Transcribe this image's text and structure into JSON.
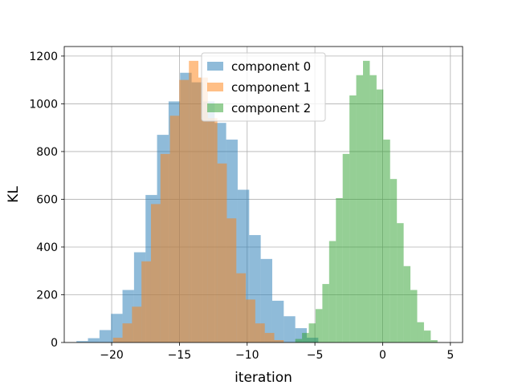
{
  "chart_data": {
    "type": "histogram",
    "title": "",
    "xlabel": "iteration",
    "ylabel": "KL",
    "xlim": [
      -23.5,
      5.9
    ],
    "ylim": [
      0,
      1240
    ],
    "xticks": [
      -20,
      -15,
      -10,
      -5,
      0,
      5
    ],
    "xtick_labels": [
      "−20",
      "−15",
      "−10",
      "−5",
      "0",
      "5"
    ],
    "yticks": [
      0,
      200,
      400,
      600,
      800,
      1000,
      1200
    ],
    "ytick_labels": [
      "0",
      "200",
      "400",
      "600",
      "800",
      "1000",
      "1200"
    ],
    "grid": true,
    "legend_position": "top-center",
    "series": [
      {
        "name": "component 0",
        "color": "#1f77b4",
        "alpha": 0.5,
        "bin_edges": [
          -22.6,
          -21.75,
          -20.9,
          -20.05,
          -19.2,
          -18.35,
          -17.5,
          -16.65,
          -15.8,
          -14.95,
          -14.1,
          -13.25,
          -12.4,
          -11.55,
          -10.7,
          -9.85,
          -9.0,
          -8.15,
          -7.3,
          -6.45,
          -5.6,
          -4.75
        ],
        "counts": [
          6,
          18,
          52,
          120,
          220,
          378,
          618,
          870,
          1010,
          1130,
          1090,
          1010,
          920,
          850,
          640,
          450,
          350,
          175,
          110,
          60,
          20
        ]
      },
      {
        "name": "component 1",
        "color": "#ff7f0e",
        "alpha": 0.5,
        "bin_edges": [
          -19.9,
          -19.2,
          -18.5,
          -17.8,
          -17.1,
          -16.4,
          -15.7,
          -15.0,
          -14.3,
          -13.6,
          -12.9,
          -12.2,
          -11.5,
          -10.8,
          -10.1,
          -9.4,
          -8.7,
          -8.0,
          -7.3
        ],
        "counts": [
          20,
          80,
          150,
          340,
          580,
          790,
          950,
          1100,
          1180,
          1110,
          940,
          750,
          520,
          290,
          180,
          80,
          40,
          10
        ]
      },
      {
        "name": "component 2",
        "color": "#2ca02c",
        "alpha": 0.5,
        "bin_edges": [
          -6.45,
          -5.95,
          -5.45,
          -4.95,
          -4.45,
          -3.95,
          -3.45,
          -2.95,
          -2.45,
          -1.95,
          -1.45,
          -0.95,
          -0.45,
          0.05,
          0.55,
          1.05,
          1.55,
          2.05,
          2.55,
          3.05,
          3.55,
          4.05
        ],
        "counts": [
          15,
          40,
          80,
          140,
          245,
          425,
          605,
          790,
          1035,
          1120,
          1180,
          1120,
          1060,
          850,
          685,
          500,
          320,
          220,
          85,
          50,
          10
        ]
      }
    ]
  }
}
